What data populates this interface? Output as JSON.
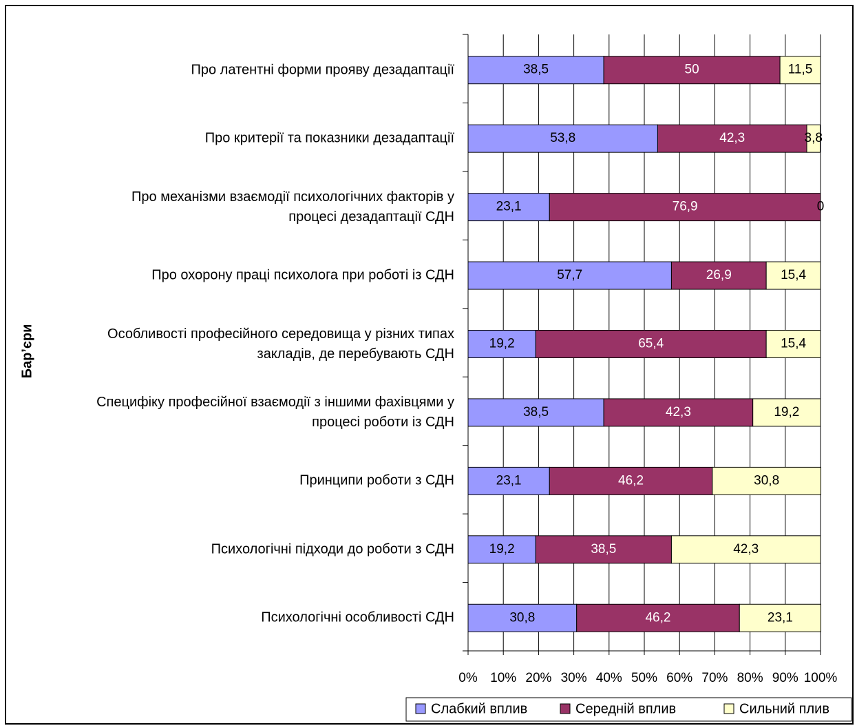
{
  "chart_data": {
    "type": "stacked_barh",
    "y_label": "Бар’єри",
    "categories": [
      "Про латентні форми прояву дезадаптації",
      "Про критерії та показники дезадаптації",
      "Про механізми взаємодії психологічних факторів у процесі дезадаптації СДН",
      "Про охорону праці психолога при роботі із СДН",
      "Особливості професійного середовища у різних типах закладів, де перебувають СДН",
      "Специфіку професійної взаємодії з іншими фахівцями у процесі роботи із СДН",
      "Принципи роботи з СДН",
      "Психологічні підходи до роботи з СДН",
      "Психологічні особливості СДН"
    ],
    "series": [
      {
        "name": "Слабкий вплив",
        "color": "#9999ff",
        "values": [
          38.5,
          53.8,
          23.1,
          57.7,
          19.2,
          38.5,
          23.1,
          19.2,
          30.8
        ],
        "value_labels": [
          "38,5",
          "53,8",
          "23,1",
          "57,7",
          "19,2",
          "38,5",
          "23,1",
          "19,2",
          "30,8"
        ]
      },
      {
        "name": "Середній вплив",
        "color": "#993366",
        "values": [
          50,
          42.3,
          76.9,
          26.9,
          65.4,
          42.3,
          46.2,
          38.5,
          46.2
        ],
        "value_labels": [
          "50",
          "42,3",
          "76,9",
          "26,9",
          "65,4",
          "42,3",
          "46,2",
          "38,5",
          "46,2"
        ]
      },
      {
        "name": "Сильний плив",
        "color": "#ffffcc",
        "values": [
          11.5,
          3.8,
          0,
          15.4,
          15.4,
          19.2,
          30.8,
          42.3,
          23.1
        ],
        "value_labels": [
          "11,5",
          "3,8",
          "0",
          "15,4",
          "15,4",
          "19,2",
          "30,8",
          "42,3",
          "23,1"
        ]
      }
    ],
    "xlim": [
      0,
      100
    ],
    "xticks": [
      {
        "value": 0,
        "label": "0%"
      },
      {
        "value": 10,
        "label": "10%"
      },
      {
        "value": 20,
        "label": "20%"
      },
      {
        "value": 30,
        "label": "30%"
      },
      {
        "value": 40,
        "label": "40%"
      },
      {
        "value": 50,
        "label": "50%"
      },
      {
        "value": 60,
        "label": "60%"
      },
      {
        "value": 70,
        "label": "70%"
      },
      {
        "value": 80,
        "label": "80%"
      },
      {
        "value": 90,
        "label": "90%"
      },
      {
        "value": 100,
        "label": "100%"
      }
    ],
    "grid": true,
    "legend": "bottom-right"
  }
}
